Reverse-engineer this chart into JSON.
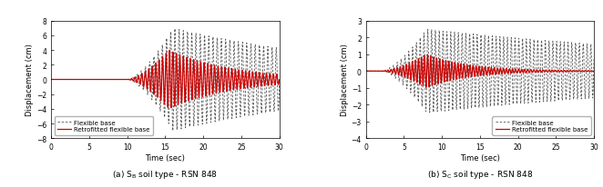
{
  "left_ylim": [
    -8,
    8
  ],
  "right_ylim": [
    -4,
    3
  ],
  "xlim": [
    0,
    30
  ],
  "left_yticks": [
    -8,
    -6,
    -4,
    -2,
    0,
    2,
    4,
    6,
    8
  ],
  "right_yticks": [
    -4,
    -3,
    -2,
    -1,
    0,
    1,
    2,
    3
  ],
  "xticks": [
    0,
    5,
    10,
    15,
    20,
    25,
    30
  ],
  "xlabel": "Time (sec)",
  "ylabel": "Displacement (cm)",
  "legend_flexible": "Flexible base",
  "legend_retrofitted": "Retrofitted flexible base",
  "left_caption": "(a) S_B soil type - RSN 848",
  "right_caption": "(b) S_C soil type - RSN 848",
  "flexible_color": "#555555",
  "retrofitted_color": "#cc0000",
  "background_color": "#ffffff",
  "flexible_linestyle": "--",
  "flexible_linewidth": 0.6,
  "retrofitted_linewidth": 0.9,
  "dt": 0.02,
  "duration": 30
}
